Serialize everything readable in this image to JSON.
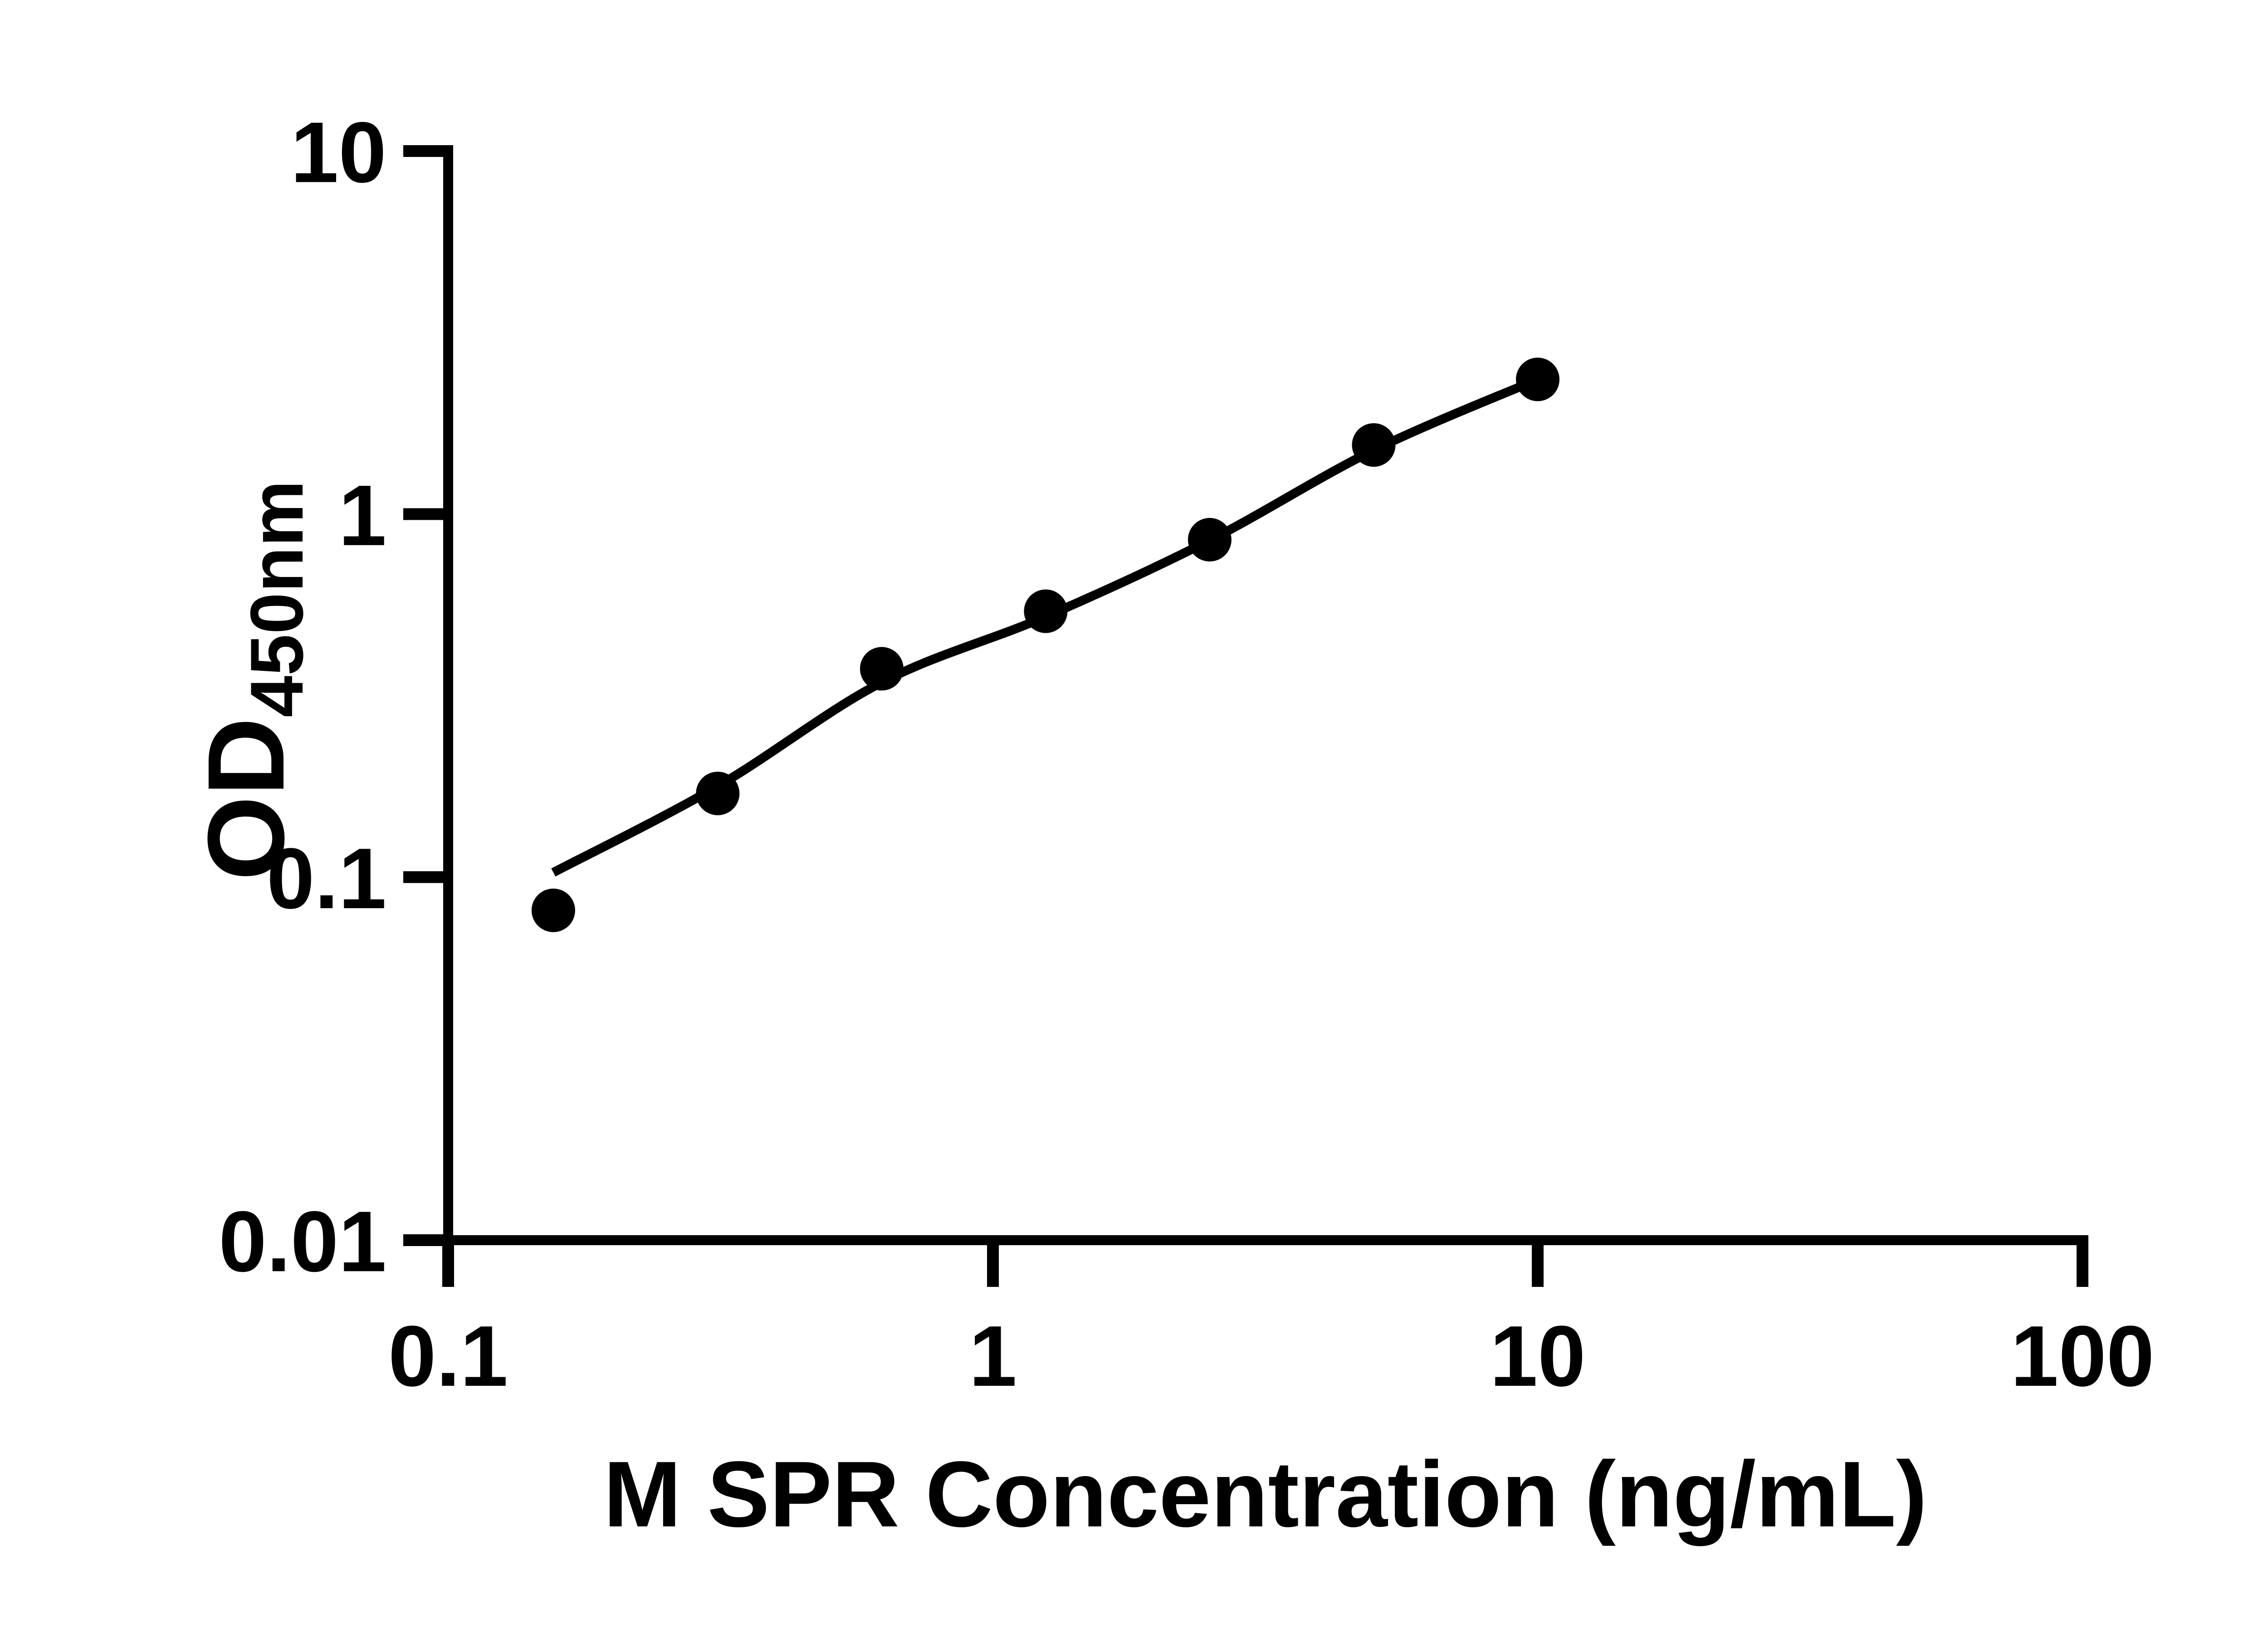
{
  "figure": {
    "background_color": "#ffffff",
    "ink_color": "#000000"
  },
  "chart_data": {
    "type": "scatter",
    "title": "",
    "xlabel": "M SPR Concentration (ng/mL)",
    "ylabel": "OD450nm",
    "ylabel_main": "OD",
    "ylabel_subscript": "450nm",
    "x_scale": "log10",
    "y_scale": "log10",
    "xlim": [
      0.1,
      100
    ],
    "ylim": [
      0.01,
      10
    ],
    "x_tick_labels": [
      "0.1",
      "1",
      "10",
      "100"
    ],
    "x_tick_values": [
      0.1,
      1,
      10,
      100
    ],
    "y_tick_labels": [
      "10",
      "1",
      "0.1",
      "0.01"
    ],
    "y_tick_values": [
      10,
      1,
      0.1,
      0.01
    ],
    "grid": false,
    "legend": "none",
    "series": [
      {
        "name": "standard-curve-points",
        "marker": "filled-circle",
        "color": "#000000",
        "points": [
          {
            "x": 0.156,
            "y": 0.081
          },
          {
            "x": 0.3125,
            "y": 0.17
          },
          {
            "x": 0.625,
            "y": 0.375
          },
          {
            "x": 1.25,
            "y": 0.54
          },
          {
            "x": 2.5,
            "y": 0.85
          },
          {
            "x": 5,
            "y": 1.55
          },
          {
            "x": 10,
            "y": 2.35
          }
        ]
      }
    ],
    "fit_line": {
      "name": "fit-line",
      "color": "#000000",
      "samples": [
        {
          "x": 0.156,
          "y": 0.103
        },
        {
          "x": 0.3125,
          "y": 0.178
        },
        {
          "x": 0.625,
          "y": 0.344
        },
        {
          "x": 1.25,
          "y": 0.522
        },
        {
          "x": 2.5,
          "y": 0.847
        },
        {
          "x": 5,
          "y": 1.5
        },
        {
          "x": 10,
          "y": 2.35
        }
      ]
    }
  }
}
